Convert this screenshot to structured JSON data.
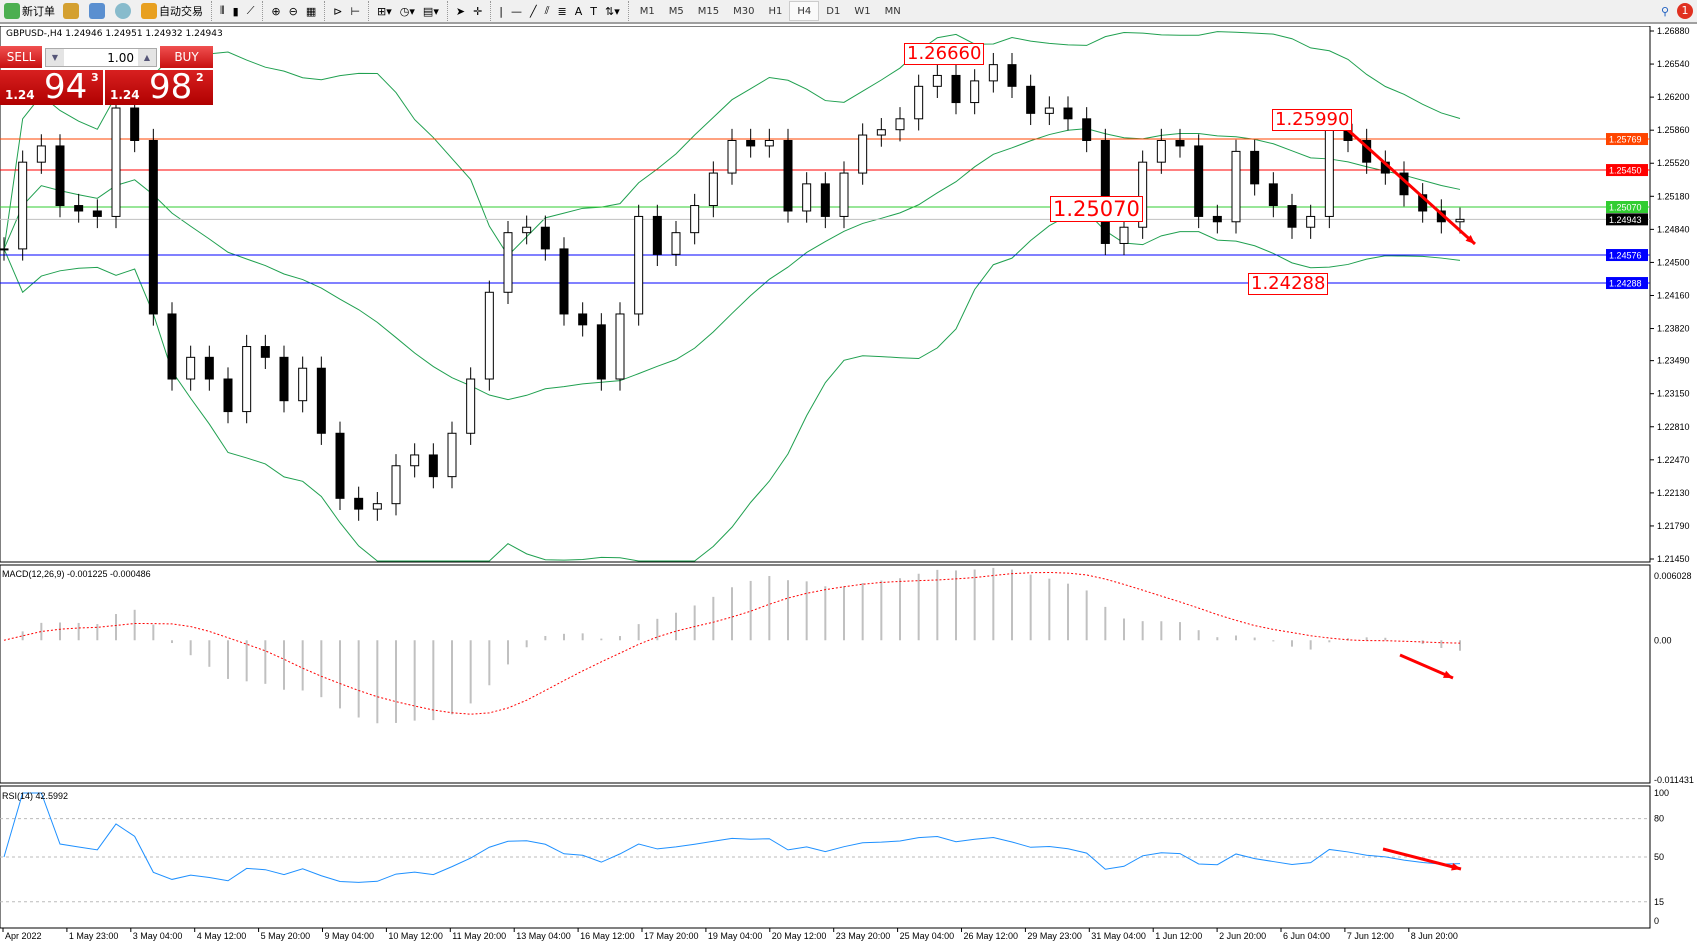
{
  "toolbar": {
    "new_order": "新订单",
    "auto_trading": "自动交易",
    "timeframes": [
      "M1",
      "M5",
      "M15",
      "M30",
      "H1",
      "H4",
      "D1",
      "W1",
      "MN"
    ],
    "active_timeframe": "H4",
    "notification_count": "1"
  },
  "symbol_info": "GBPUSD-,H4  1.24946 1.24951 1.24932 1.24943",
  "trade_panel": {
    "sell_label": "SELL",
    "buy_label": "BUY",
    "lot": "1.00",
    "sell_prefix": "1.24",
    "sell_big": "94",
    "sell_sup": "3",
    "buy_prefix": "1.24",
    "buy_big": "98",
    "buy_sup": "2"
  },
  "annotations": [
    "1.26660",
    "1.25990",
    "1.25070",
    "1.24288"
  ],
  "chart_data": {
    "type": "candlestick",
    "price_axis": [
      "1.26880",
      "1.26540",
      "1.26200",
      "1.25860",
      "1.25520",
      "1.25180",
      "1.24840",
      "1.24500",
      "1.24160",
      "1.23820",
      "1.23490",
      "1.23150",
      "1.22810",
      "1.22470",
      "1.22130",
      "1.21790",
      "1.21450"
    ],
    "price_range": [
      1.2145,
      1.2688
    ],
    "time_axis": [
      "Apr 2022",
      "1 May 23:00",
      "3 May 04:00",
      "4 May 12:00",
      "5 May 20:00",
      "9 May 04:00",
      "10 May 12:00",
      "11 May 20:00",
      "13 May 04:00",
      "16 May 12:00",
      "17 May 20:00",
      "19 May 04:00",
      "20 May 12:00",
      "23 May 20:00",
      "25 May 04:00",
      "26 May 12:00",
      "29 May 23:00",
      "31 May 04:00",
      "1 Jun 12:00",
      "2 Jun 20:00",
      "6 Jun 04:00",
      "7 Jun 12:00",
      "8 Jun 20:00"
    ],
    "closes": [
      1.24639,
      1.25531,
      1.25698,
      1.25085,
      1.25029,
      1.24973,
      1.26088,
      1.25754,
      1.2397,
      1.23301,
      1.23524,
      1.23301,
      1.22966,
      1.23635,
      1.23524,
      1.23078,
      1.23412,
      1.22743,
      1.22074,
      1.21963,
      1.22019,
      1.22409,
      1.2252,
      1.22297,
      1.22743,
      1.23301,
      1.24193,
      1.24806,
      1.24862,
      1.24639,
      1.2397,
      1.23858,
      1.23301,
      1.2397,
      1.24973,
      1.24583,
      1.24806,
      1.25085,
      1.25419,
      1.25754,
      1.25698,
      1.25754,
      1.25029,
      1.25308,
      1.24973,
      1.25419,
      1.2581,
      1.25865,
      1.25977,
      1.26311,
      1.26423,
      1.26144,
      1.26367,
      1.26534,
      1.26311,
      1.26033,
      1.26088,
      1.25977,
      1.25754,
      1.24695,
      1.24862,
      1.25531,
      1.25754,
      1.25698,
      1.24973,
      1.24918,
      1.25642,
      1.25308,
      1.25085,
      1.24862,
      1.24973,
      1.25921,
      1.25754,
      1.25531,
      1.25419,
      1.25196,
      1.25029,
      1.24918,
      1.24943
    ],
    "hlines": [
      {
        "price": "1.25769",
        "color": "#ff4500"
      },
      {
        "price": "1.25450",
        "color": "#ff0000"
      },
      {
        "price": "1.25070",
        "color": "#32cd32"
      },
      {
        "price": "1.24943",
        "color": "#c0c0c0",
        "label_bg": "#000000"
      },
      {
        "price": "1.24576",
        "color": "#0000ff"
      },
      {
        "price": "1.24288",
        "color": "#0000ff"
      }
    ],
    "bands_color": "#20a050",
    "macd": {
      "label": "MACD(12,26,9) -0.001225 -0.000486",
      "axis": [
        "0.006028",
        "0.00",
        "-0.011431"
      ],
      "range": [
        -0.011431,
        0.006028
      ],
      "hist_color": "#c0c0c0",
      "signal_color": "#ff0000"
    },
    "rsi": {
      "label": "RSI(14) 42.5992",
      "axis": [
        "100",
        "80",
        "50",
        "15",
        "0"
      ],
      "levels": [
        80,
        50,
        15
      ],
      "color": "#1e90ff"
    }
  }
}
